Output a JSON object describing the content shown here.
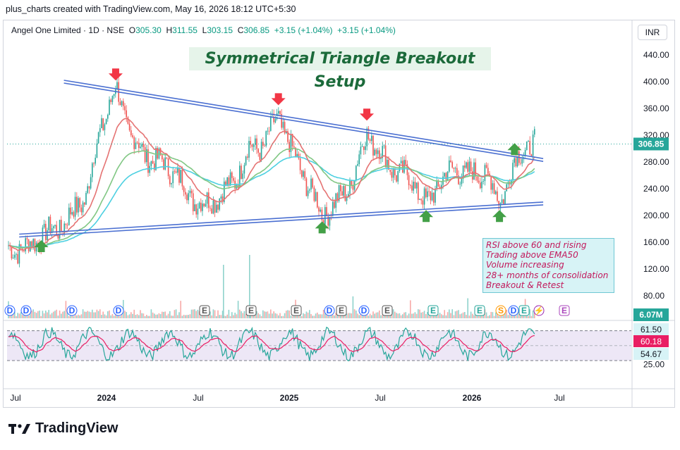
{
  "header": {
    "attribution": "plus_charts created with TradingView.com, May 16, 2026 18:12 UTC+5:30"
  },
  "legend": {
    "symbol": "Angel One Limited · 1D · NSE",
    "o_label": "O",
    "o": "305.30",
    "h_label": "H",
    "h": "311.55",
    "l_label": "L",
    "l": "303.15",
    "c_label": "C",
    "c": "306.85",
    "change": "+3.15 (+1.04%)",
    "change2": "+3.15 (+1.04%)"
  },
  "currency": "INR",
  "brand": "TradingView",
  "annotations": {
    "title": "Symmetrical Triangle Breakout Setup",
    "notes": [
      "RSI above 60 and rising",
      "Trading above EMA50",
      "Volume increasing",
      "28+ months of consolidation",
      "Breakout & Retest"
    ]
  },
  "colors": {
    "up": "#26a69a",
    "down": "#ef5350",
    "ema_red": "#e57373",
    "ema_green": "#81c784",
    "ema_cyan": "#4dd0e1",
    "trendline": "#4a6fd1",
    "arrow_down": "#f23645",
    "arrow_up": "#43a047",
    "rsi_band": "#ede7f6"
  },
  "chart_data": {
    "type": "candlestick",
    "price_axis": {
      "ticks": [
        "440.00",
        "400.00",
        "360.00",
        "320.00",
        "280.00",
        "240.00",
        "200.00",
        "160.00",
        "120.00",
        "80.00"
      ],
      "ylim": [
        60,
        470
      ],
      "last_price": "306.85"
    },
    "x_axis": {
      "ticks": [
        "Jul",
        "2024",
        "Jul",
        "2025",
        "Jul",
        "2026",
        "Jul"
      ]
    },
    "price_series": [
      [
        "2023-07",
        150
      ],
      [
        "2023-08",
        170
      ],
      [
        "2023-09",
        180
      ],
      [
        "2023-10",
        200
      ],
      [
        "2023-11",
        230
      ],
      [
        "2023-12",
        330
      ],
      [
        "2024-01",
        390
      ],
      [
        "2024-02",
        320
      ],
      [
        "2024-03",
        290
      ],
      [
        "2024-04",
        280
      ],
      [
        "2024-05",
        265
      ],
      [
        "2024-06",
        230
      ],
      [
        "2024-07",
        215
      ],
      [
        "2024-08",
        230
      ],
      [
        "2024-09",
        250
      ],
      [
        "2024-10",
        300
      ],
      [
        "2024-11",
        305
      ],
      [
        "2024-12",
        350
      ],
      [
        "2025-01",
        290
      ],
      [
        "2025-02",
        245
      ],
      [
        "2025-03",
        200
      ],
      [
        "2025-04",
        220
      ],
      [
        "2025-05",
        250
      ],
      [
        "2025-06",
        325
      ],
      [
        "2025-07",
        290
      ],
      [
        "2025-08",
        265
      ],
      [
        "2025-09",
        255
      ],
      [
        "2025-10",
        215
      ],
      [
        "2025-11",
        255
      ],
      [
        "2025-12",
        270
      ],
      [
        "2026-01",
        260
      ],
      [
        "2026-02",
        265
      ],
      [
        "2026-03",
        218
      ],
      [
        "2026-04",
        280
      ],
      [
        "2026-05",
        306.85
      ]
    ],
    "trendlines": {
      "resistance": [
        [
          "2023-10",
          400
        ],
        [
          "2026-05",
          283
        ]
      ],
      "support": [
        [
          "2023-07",
          170
        ],
        [
          "2026-05",
          218
        ]
      ]
    },
    "markers": {
      "down_arrows": [
        "2024-01",
        "2024-12",
        "2025-06"
      ],
      "up_arrows": [
        "2023-08",
        "2025-03",
        "2025-10",
        "2026-03",
        "2026-04"
      ]
    },
    "volume": {
      "label": "6.07M"
    },
    "events": [
      "D",
      "D",
      "D",
      "D",
      "E",
      "E",
      "E",
      "D",
      "E",
      "D",
      "E",
      "E",
      "E",
      "S",
      "D",
      "E",
      "⚡",
      "E"
    ],
    "rsi": {
      "ticks": [
        "25.00"
      ],
      "labels": [
        "61.50",
        "60.18",
        "54.67"
      ],
      "levels": [
        70,
        30
      ]
    }
  }
}
